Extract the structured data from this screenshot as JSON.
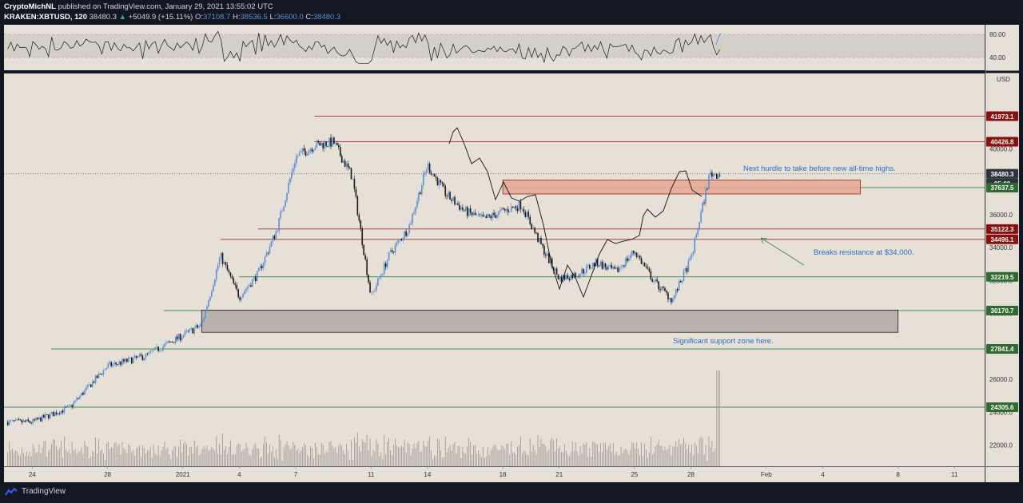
{
  "header": {
    "author": "CryptoMichNL",
    "published_text": "published on TradingView.com, January 29, 2021 13:55:02 UTC",
    "symbol": "KRAKEN:XBTUSD, 120",
    "last": "38480.3",
    "change_arrow": "▲",
    "change": "+5049.9 (+15.11%)",
    "o_label": "O:",
    "o_val": "37108.7",
    "h_label": "H:",
    "h_val": "38536.5",
    "l_label": "L:",
    "l_val": "36600.0",
    "c_label": "C:",
    "c_val": "38480.3"
  },
  "footer": {
    "brand": "TradingView"
  },
  "colors": {
    "bg": "#e6e0d6",
    "frame": "#131722",
    "candle_up": "#5b8fd6",
    "candle_down": "#1a1a1a",
    "res_line": "#a03030",
    "sup_line": "#2f8a3f",
    "res_tag": "#8b0f0f",
    "sup_tag": "#2e6b2e",
    "annotation": "#2a6fc9"
  },
  "chart_data": [
    {
      "type": "line",
      "name": "price",
      "x": [
        "2020-12-24",
        "2020-12-26",
        "2020-12-28",
        "2020-12-30",
        "2021-01-02",
        "2021-01-03",
        "2021-01-04",
        "2021-01-05",
        "2021-01-06",
        "2021-01-07",
        "2021-01-08",
        "2021-01-09",
        "2021-01-10",
        "2021-01-11",
        "2021-01-12",
        "2021-01-13",
        "2021-01-14",
        "2021-01-15",
        "2021-01-16",
        "2021-01-17",
        "2021-01-18",
        "2021-01-19",
        "2021-01-20",
        "2021-01-21",
        "2021-01-22",
        "2021-01-23",
        "2021-01-24",
        "2021-01-25",
        "2021-01-26",
        "2021-01-27",
        "2021-01-28",
        "2021-01-29"
      ],
      "y": [
        23400,
        24300,
        26800,
        27400,
        29300,
        33500,
        31000,
        32400,
        35100,
        39500,
        40200,
        40400,
        38300,
        31000,
        33600,
        35200,
        39000,
        37200,
        36200,
        35700,
        36200,
        36600,
        34200,
        32100,
        32400,
        33100,
        32500,
        33800,
        32000,
        30800,
        33300,
        38480
      ],
      "yticks": [
        "22000.0",
        "24000.0",
        "26000.0",
        "28000.0",
        "30000.0",
        "32000.0",
        "34000.0",
        "36000.0",
        "38000.0",
        "40000.0"
      ],
      "unit_label": "USD",
      "xticks": [
        "24",
        "28",
        "2021",
        "4",
        "7",
        "11",
        "14",
        "18",
        "21",
        "25",
        "28",
        "Feb",
        "4",
        "8",
        "11"
      ],
      "price_tags": [
        {
          "label": "41973.1",
          "value": 41973.1,
          "kind": "resistance"
        },
        {
          "label": "40426.8",
          "value": 40426.8,
          "kind": "resistance"
        },
        {
          "label": "38480.3",
          "value": 38480.3,
          "kind": "last"
        },
        {
          "label": "05:00",
          "value": 37900,
          "kind": "countdown"
        },
        {
          "label": "37637.5",
          "value": 37637.5,
          "kind": "support"
        },
        {
          "label": "35122.3",
          "value": 35122.3,
          "kind": "resistance"
        },
        {
          "label": "34496.1",
          "value": 34496.1,
          "kind": "resistance"
        },
        {
          "label": "32219.5",
          "value": 32219.5,
          "kind": "support"
        },
        {
          "label": "30170.7",
          "value": 30170.7,
          "kind": "support"
        },
        {
          "label": "27841.4",
          "value": 27841.4,
          "kind": "support"
        },
        {
          "label": "24305.6",
          "value": 24305.6,
          "kind": "support"
        }
      ],
      "zones": [
        {
          "kind": "resistance",
          "from": "2021-01-18",
          "to": "2021-02-06",
          "low": 37250,
          "high": 38100
        },
        {
          "kind": "support",
          "from": "2021-01-02",
          "to": "2021-02-08",
          "low": 28850,
          "high": 30200
        }
      ],
      "annotations": [
        "Next hurdle to take before new all-time highs.",
        "Breaks resistance at $34,000.",
        "Significant support zone here."
      ]
    },
    {
      "type": "line",
      "name": "RSI",
      "yticks": [
        "80.00",
        "40.00"
      ],
      "y_bands": [
        40,
        80
      ]
    },
    {
      "type": "bar",
      "name": "volume"
    }
  ]
}
